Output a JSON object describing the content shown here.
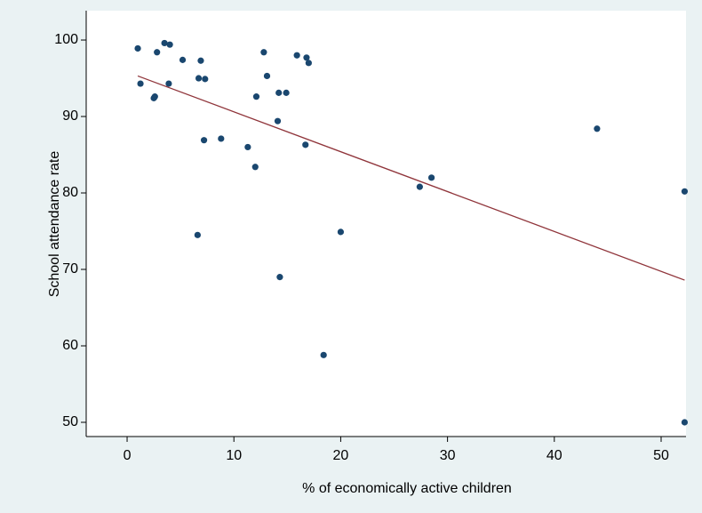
{
  "chart_data": {
    "type": "scatter",
    "xlabel": "% of economically active children",
    "ylabel": "School attendance rate",
    "xlim": [
      -3.83,
      52.33
    ],
    "ylim": [
      48.14,
      103.84
    ],
    "xticks": [
      0,
      10,
      20,
      30,
      40,
      50
    ],
    "yticks": [
      50,
      60,
      70,
      80,
      90,
      100
    ],
    "grid": false,
    "series": [
      {
        "type": "scatter",
        "color": "#1a476f",
        "x": [
          1.0,
          1.25,
          2.6,
          2.5,
          2.8,
          3.5,
          4.0,
          3.9,
          5.2,
          6.9,
          6.7,
          7.3,
          7.2,
          6.6,
          8.8,
          11.3,
          12.0,
          12.1,
          12.8,
          13.1,
          14.1,
          14.2,
          14.9,
          14.3,
          15.9,
          16.8,
          17.0,
          16.7,
          18.4,
          20.0,
          27.4,
          28.5,
          44.0,
          52.2,
          52.2
        ],
        "values": [
          98.9,
          94.3,
          92.6,
          92.4,
          98.4,
          99.6,
          99.4,
          94.3,
          97.4,
          97.3,
          95.0,
          94.9,
          86.9,
          74.5,
          87.1,
          86.0,
          83.4,
          92.6,
          98.4,
          95.3,
          89.4,
          93.1,
          93.1,
          69.0,
          98.0,
          97.7,
          97.0,
          86.3,
          58.8,
          74.9,
          80.8,
          82.0,
          88.4,
          80.2,
          50.0
        ]
      },
      {
        "type": "line",
        "color": "#90353b",
        "x": [
          1.0,
          52.2
        ],
        "values": [
          95.3,
          68.6
        ]
      }
    ]
  }
}
